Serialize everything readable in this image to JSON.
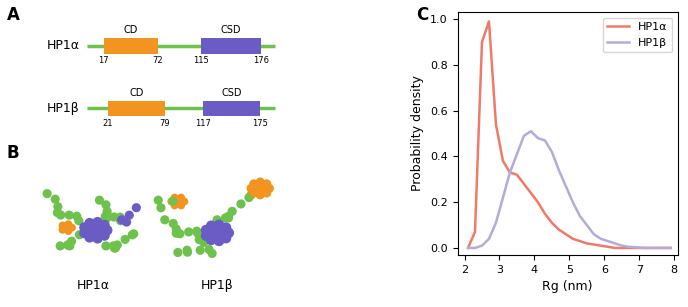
{
  "panel_labels": [
    "A",
    "B",
    "C"
  ],
  "domain_diagram": {
    "proteins": [
      {
        "name": "HP1α",
        "domains": [
          {
            "name": "CD",
            "start": 17,
            "end": 72,
            "color": "#f39420"
          },
          {
            "name": "CSD",
            "start": 115,
            "end": 176,
            "color": "#6a5cc4"
          }
        ]
      },
      {
        "name": "HP1β",
        "domains": [
          {
            "name": "CD",
            "start": 21,
            "end": 79,
            "color": "#f39420"
          },
          {
            "name": "CSD",
            "start": 117,
            "end": 175,
            "color": "#6a5cc4"
          }
        ]
      }
    ],
    "linker_color": "#6cc24a"
  },
  "structures": {
    "labels": [
      "HP1α",
      "HP1β"
    ]
  },
  "chart_data": {
    "type": "line",
    "xlabel": "Rg (nm)",
    "ylabel": "Probability density",
    "x": [
      2.1,
      2.3,
      2.5,
      2.7,
      2.9,
      3.1,
      3.3,
      3.5,
      3.7,
      3.9,
      4.1,
      4.3,
      4.5,
      4.7,
      4.9,
      5.1,
      5.3,
      5.5,
      5.7,
      5.9,
      6.1,
      6.3,
      6.5,
      6.7,
      6.9,
      7.1,
      7.3,
      7.5,
      7.7,
      7.9
    ],
    "series": [
      {
        "name": "HP1α",
        "color": "#f07a68",
        "values": [
          0.0,
          0.07,
          0.9,
          0.99,
          0.54,
          0.38,
          0.33,
          0.32,
          0.28,
          0.24,
          0.2,
          0.15,
          0.11,
          0.08,
          0.06,
          0.04,
          0.03,
          0.02,
          0.015,
          0.01,
          0.005,
          0.0,
          0.0,
          0.0,
          0.0,
          0.0,
          0.0,
          0.0,
          0.0,
          0.0
        ]
      },
      {
        "name": "HP1β",
        "color": "#b4abdb",
        "values": [
          0.0,
          0.0,
          0.01,
          0.04,
          0.11,
          0.22,
          0.33,
          0.41,
          0.49,
          0.51,
          0.48,
          0.47,
          0.42,
          0.34,
          0.27,
          0.2,
          0.14,
          0.1,
          0.06,
          0.04,
          0.03,
          0.02,
          0.01,
          0.005,
          0.003,
          0.0,
          0.0,
          0.0,
          0.0,
          0.0
        ]
      }
    ],
    "xlim": [
      1.8,
      8.1
    ],
    "xticks": [
      2,
      3,
      4,
      5,
      6,
      7,
      8
    ],
    "ylim": [
      -0.03,
      1.03
    ],
    "yticks": [
      {
        "value": 0.0,
        "label": "0.0"
      },
      {
        "value": 0.2,
        "label": "0.2"
      },
      {
        "value": 0.4,
        "label": "0.4"
      },
      {
        "value": 0.6,
        "label": "0.6"
      },
      {
        "value": 0.8,
        "label": "0.8"
      },
      {
        "value": 1.0,
        "label": "1.0"
      }
    ],
    "legend": "upper right",
    "grid": false
  }
}
